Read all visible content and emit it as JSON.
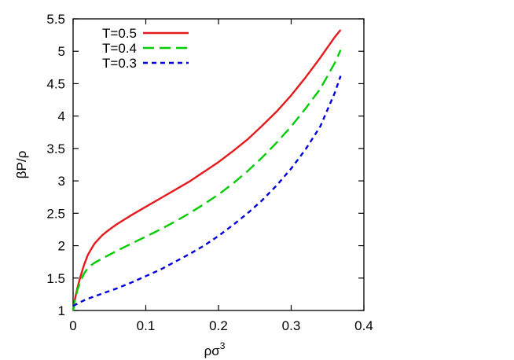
{
  "chart_data": {
    "type": "line",
    "xlabel": "ρσ",
    "xlabel_superscript": "3",
    "ylabel": "βP/ρ",
    "xlim": [
      0,
      0.4
    ],
    "ylim": [
      1,
      5.5
    ],
    "x_ticks": [
      0,
      0.1,
      0.2,
      0.3,
      0.4
    ],
    "x_tick_labels": [
      "0",
      "0.1",
      "0.2",
      "0.3",
      "0.4"
    ],
    "y_ticks": [
      1,
      1.5,
      2,
      2.5,
      3,
      3.5,
      4,
      4.5,
      5,
      5.5
    ],
    "y_tick_labels": [
      "1",
      "1.5",
      "2",
      "2.5",
      "3",
      "3.5",
      "4",
      "4.5",
      "5",
      "5.5"
    ],
    "grid": false,
    "legend_position": "top-left",
    "series": [
      {
        "name": "T=0.5",
        "color": "#e41a1c",
        "dash": "solid",
        "x": [
          0.0,
          0.003,
          0.006,
          0.01,
          0.015,
          0.02,
          0.025,
          0.03,
          0.04,
          0.05,
          0.06,
          0.08,
          0.1,
          0.12,
          0.14,
          0.16,
          0.18,
          0.2,
          0.22,
          0.24,
          0.26,
          0.28,
          0.3,
          0.32,
          0.34,
          0.36,
          0.368
        ],
        "y": [
          1.0,
          1.2,
          1.35,
          1.52,
          1.7,
          1.85,
          1.95,
          2.04,
          2.16,
          2.25,
          2.33,
          2.47,
          2.6,
          2.73,
          2.86,
          2.99,
          3.14,
          3.29,
          3.46,
          3.64,
          3.85,
          4.07,
          4.32,
          4.6,
          4.9,
          5.22,
          5.33
        ]
      },
      {
        "name": "T=0.4",
        "color": "#00cc00",
        "dash": "long-dash",
        "x": [
          0.0,
          0.003,
          0.006,
          0.01,
          0.015,
          0.02,
          0.025,
          0.03,
          0.04,
          0.05,
          0.06,
          0.08,
          0.1,
          0.12,
          0.14,
          0.16,
          0.18,
          0.2,
          0.22,
          0.24,
          0.26,
          0.28,
          0.3,
          0.32,
          0.34,
          0.36,
          0.368
        ],
        "y": [
          1.0,
          1.18,
          1.32,
          1.45,
          1.57,
          1.65,
          1.7,
          1.74,
          1.8,
          1.86,
          1.92,
          2.03,
          2.14,
          2.25,
          2.37,
          2.5,
          2.64,
          2.79,
          2.96,
          3.15,
          3.36,
          3.59,
          3.84,
          4.12,
          4.42,
          4.82,
          5.02
        ]
      },
      {
        "name": "T=0.3",
        "color": "#0000dd",
        "dash": "short-dash",
        "x": [
          0.0,
          0.005,
          0.01,
          0.02,
          0.03,
          0.04,
          0.06,
          0.08,
          0.1,
          0.12,
          0.14,
          0.16,
          0.18,
          0.2,
          0.22,
          0.24,
          0.26,
          0.28,
          0.3,
          0.32,
          0.34,
          0.36,
          0.368
        ],
        "y": [
          1.07,
          1.1,
          1.13,
          1.18,
          1.22,
          1.26,
          1.34,
          1.43,
          1.53,
          1.63,
          1.75,
          1.87,
          2.0,
          2.15,
          2.32,
          2.5,
          2.7,
          2.93,
          3.19,
          3.49,
          3.84,
          4.36,
          4.62
        ]
      }
    ]
  }
}
